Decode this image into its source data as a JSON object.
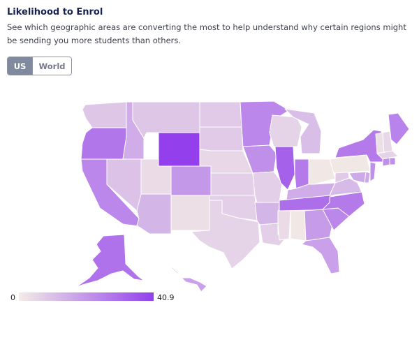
{
  "header": {
    "title": "Likelihood to Enrol",
    "subtitle": "See which geographic areas are converting the most to help understand why certain regions might be sending you more students than others."
  },
  "toggle": {
    "options": [
      "US",
      "World"
    ],
    "selected": "US"
  },
  "legend": {
    "min_label": "0",
    "max_label": "40.9",
    "min_value": 0,
    "max_value": 40.9,
    "min_color": "#f3ece6",
    "max_color": "#9340ec"
  },
  "map_data": {
    "metric": "Likelihood to Enrol",
    "region": "US",
    "states": {
      "WA": 9,
      "OR": 28,
      "CA": 24,
      "NV": 10,
      "ID": 15,
      "MT": 9,
      "WY": 40.9,
      "UT": 4,
      "CO": 20,
      "AZ": 13,
      "NM": 3,
      "ND": 8,
      "SD": 8,
      "NE": 5,
      "KS": 7,
      "OK": 7,
      "TX": 6,
      "MN": 24,
      "IA": 22,
      "MO": 7,
      "AR": 13,
      "LA": 7,
      "WI": 6,
      "IL": 33,
      "MI": 11,
      "IN": 27,
      "OH": 1,
      "KY": 15,
      "TN": 30,
      "MS": 4,
      "AL": 1,
      "GA": 19,
      "FL": 18,
      "SC": 24,
      "NC": 27,
      "VA": 12,
      "WV": 8,
      "PA": 1,
      "NY": 27,
      "MD": 16,
      "DE": 16,
      "NJ": 22,
      "ME": 25,
      "VT": 3,
      "NH": 5,
      "MA": 6,
      "CT": 22,
      "RI": 22,
      "AK": 29,
      "HI": 18
    }
  }
}
